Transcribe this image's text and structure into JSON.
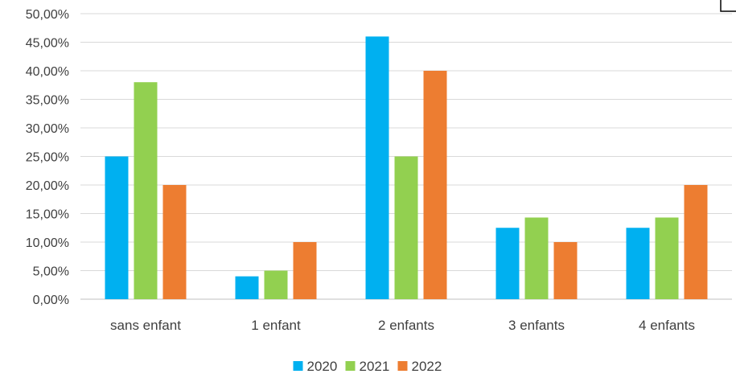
{
  "chart_data": {
    "type": "bar",
    "title": "",
    "xlabel": "",
    "ylabel": "",
    "categories": [
      "sans enfant",
      "1 enfant",
      "2 enfants",
      "3 enfants",
      "4 enfants"
    ],
    "series": [
      {
        "name": "2020",
        "color": "#00b0f0",
        "values": [
          25.0,
          4.0,
          46.0,
          12.5,
          12.5
        ]
      },
      {
        "name": "2021",
        "color": "#92d050",
        "values": [
          38.0,
          5.0,
          25.0,
          14.3,
          14.3
        ]
      },
      {
        "name": "2022",
        "color": "#ed7d31",
        "values": [
          20.0,
          10.0,
          40.0,
          10.0,
          20.0
        ]
      }
    ],
    "ylim": [
      0,
      50
    ],
    "ytick_step": 5,
    "yticks": [
      "0,00%",
      "5,00%",
      "10,00%",
      "15,00%",
      "20,00%",
      "25,00%",
      "30,00%",
      "35,00%",
      "40,00%",
      "45,00%",
      "50,00%"
    ],
    "grid": true,
    "legend_position": "bottom"
  }
}
